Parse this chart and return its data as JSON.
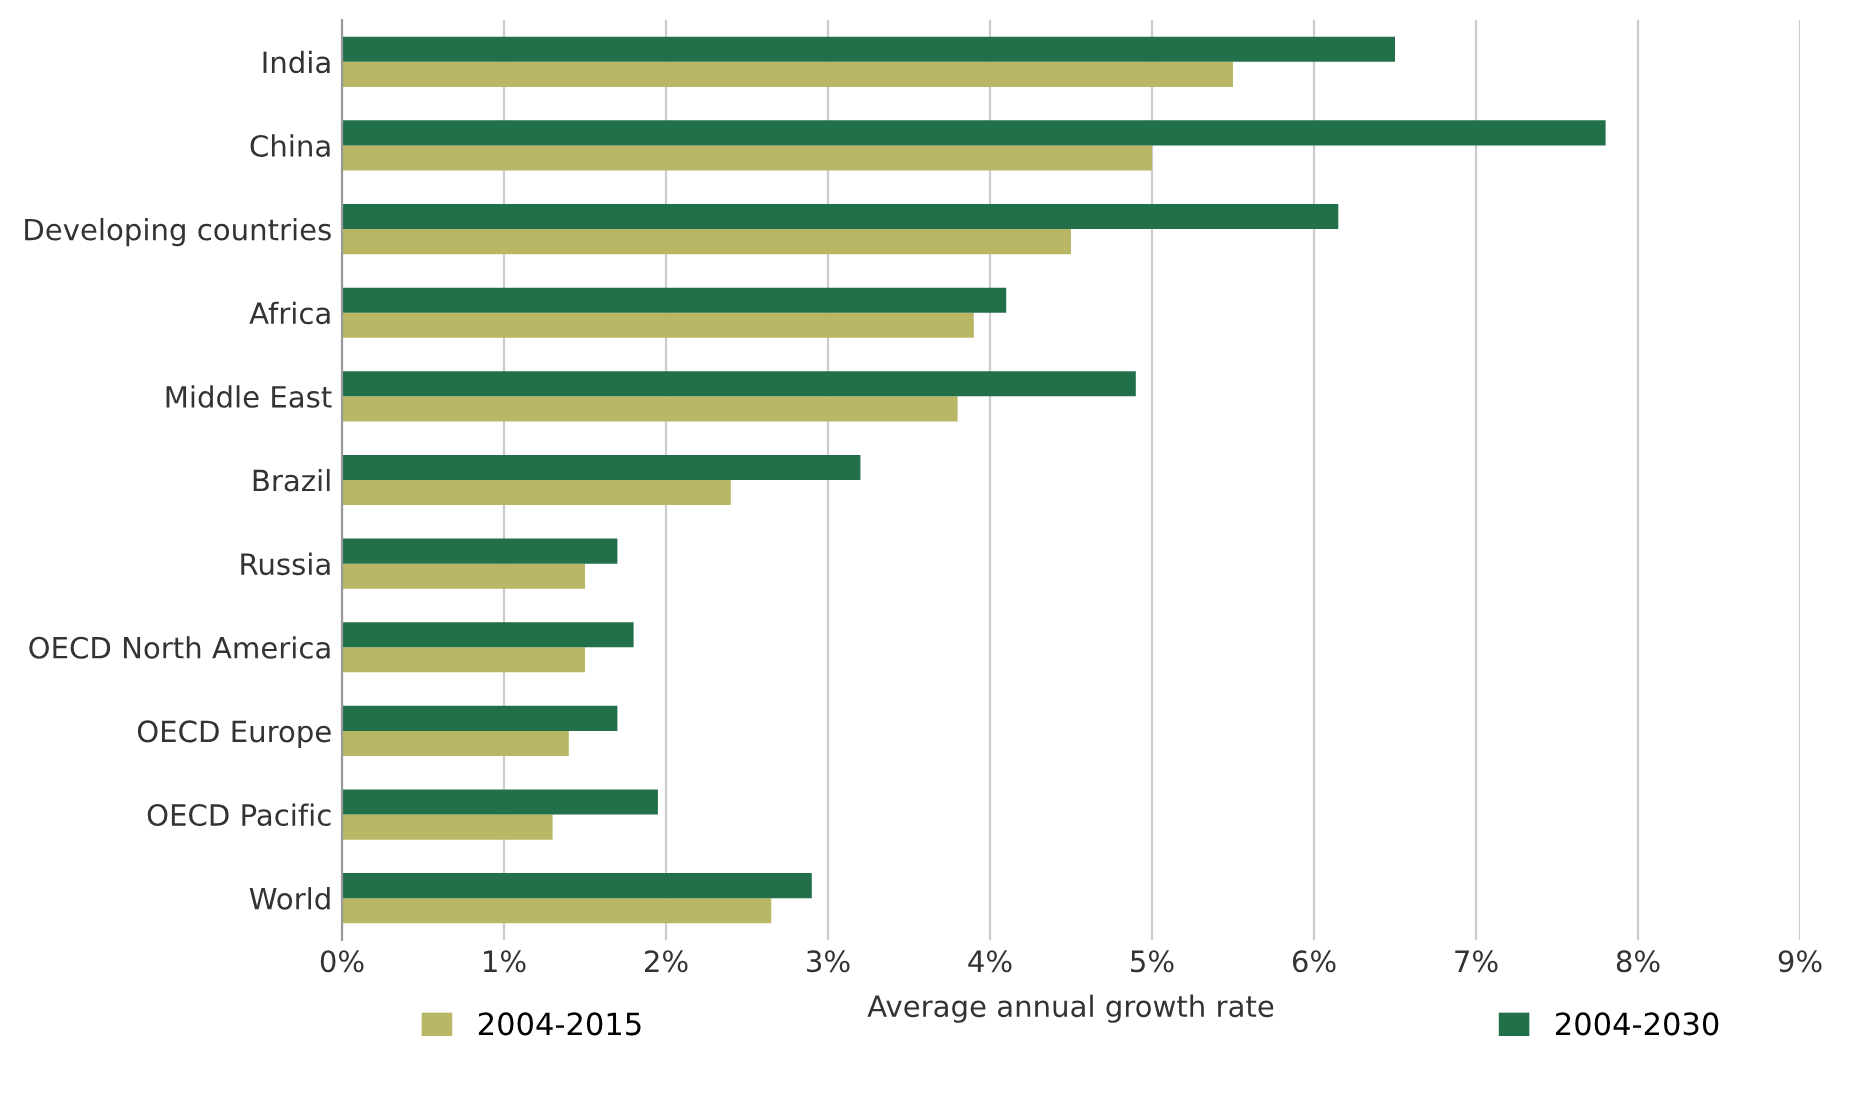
{
  "chart_data": {
    "type": "bar",
    "orientation": "horizontal",
    "xlabel": "Average annual growth rate",
    "categories": [
      "India",
      "China",
      "Developing countries",
      "Africa",
      "Middle East",
      "Brazil",
      "Russia",
      "OECD North America",
      "OECD Europe",
      "OECD Pacific",
      "World"
    ],
    "series": [
      {
        "name": "2004-2015",
        "color": "#b9b765",
        "values": [
          5.5,
          5.0,
          4.5,
          3.9,
          3.8,
          2.4,
          1.5,
          1.5,
          1.4,
          1.3,
          2.65
        ]
      },
      {
        "name": "2004-2030",
        "color": "#22704a",
        "values": [
          6.5,
          7.8,
          6.15,
          4.1,
          4.9,
          3.2,
          1.7,
          1.8,
          1.7,
          1.95,
          2.9
        ]
      }
    ],
    "xlim": [
      0,
      9
    ],
    "xticks": [
      {
        "value": 0,
        "label": "0%"
      },
      {
        "value": 1,
        "label": "1%"
      },
      {
        "value": 2,
        "label": "2%"
      },
      {
        "value": 3,
        "label": "3%"
      },
      {
        "value": 4,
        "label": "4%"
      },
      {
        "value": 5,
        "label": "5%"
      },
      {
        "value": 6,
        "label": "6%"
      },
      {
        "value": 7,
        "label": "7%"
      },
      {
        "value": 8,
        "label": "8%"
      },
      {
        "value": 9,
        "label": "9%"
      }
    ],
    "grid": "x",
    "legend": "bottom"
  }
}
